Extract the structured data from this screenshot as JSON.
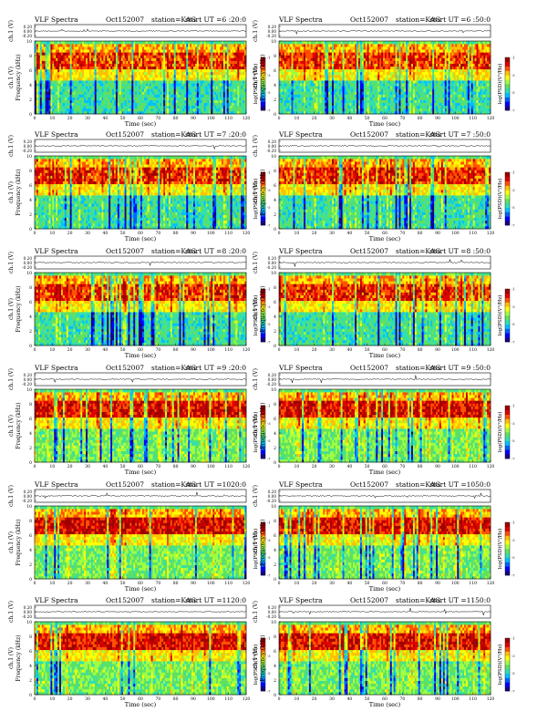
{
  "colors": {
    "scale": [
      "#1a0080",
      "#0000ff",
      "#0060ff",
      "#00c0ff",
      "#30e0b0",
      "#60e060",
      "#a0ff40",
      "#ffff00",
      "#ffc000",
      "#ff5000",
      "#e00000",
      "#a00000"
    ],
    "line": "#000000"
  },
  "panels": [
    {
      "label": "VLF Spectra",
      "date": "Oct152007",
      "station": "station=KAG",
      "start": "start  UT =6 :20:0",
      "y_label": "Frequency (kHz)",
      "cb_label": "log(PSD)(V²/Hz)",
      "x_label": "Time  (sec)",
      "ch_label": "ch.1 (V)"
    },
    {
      "label": "VLF Spectra",
      "date": "Oct152007",
      "station": "station=KAG",
      "start": "start  UT =6 :50:0",
      "y_label": "Frequency (kHz)",
      "cb_label": "log(PSD)(V²/Hz)",
      "x_label": "Time  (sec)",
      "ch_label": "ch.1 (V)"
    },
    {
      "label": "VLF Spectra",
      "date": "Oct152007",
      "station": "station=KAG",
      "start": "start  UT =7 :20:0",
      "y_label": "Frequency (kHz)",
      "cb_label": "log(PSD)(V²/Hz)",
      "x_label": "Time  (sec)",
      "ch_label": "ch.1 (V)"
    },
    {
      "label": "VLF Spectra",
      "date": "Oct152007",
      "station": "station=KAG",
      "start": "start  UT =7 :50:0",
      "y_label": "Frequency (kHz)",
      "cb_label": "log(PSD)(V²/Hz)",
      "x_label": "Time  (sec)",
      "ch_label": "ch.1 (V)"
    },
    {
      "label": "VLF Spectra",
      "date": "Oct152007",
      "station": "station=KAG",
      "start": "start  UT =8 :20:0",
      "y_label": "Frequency (kHz)",
      "cb_label": "log(PSD)(V²/Hz)",
      "x_label": "Time  (sec)",
      "ch_label": "ch.1 (V)"
    },
    {
      "label": "VLF Spectra",
      "date": "Oct152007",
      "station": "station=KAG",
      "start": "start  UT =8 :50:0",
      "y_label": "Frequency (kHz)",
      "cb_label": "log(PSD)(V²/Hz)",
      "x_label": "Time  (sec)",
      "ch_label": "ch.1 (V)"
    },
    {
      "label": "VLF Spectra",
      "date": "Oct152007",
      "station": "station=KAG",
      "start": "start  UT =9 :20:0",
      "y_label": "Frequency (kHz)",
      "cb_label": "log(PSD)(V²/Hz)",
      "x_label": "Time  (sec)",
      "ch_label": "ch.1 (V)"
    },
    {
      "label": "VLF Spectra",
      "date": "Oct152007",
      "station": "station=KAG",
      "start": "start  UT =9 :50:0",
      "y_label": "Frequency (kHz)",
      "cb_label": "log(PSD)(V²/Hz)",
      "x_label": "Time  (sec)",
      "ch_label": "ch.1 (V)"
    },
    {
      "label": "VLF Spectra",
      "date": "Oct152007",
      "station": "station=KAG",
      "start": "start  UT =1020:0",
      "y_label": "Frequency (kHz)",
      "cb_label": "log(PSD)(V²/Hz)",
      "x_label": "Time  (sec)",
      "ch_label": "ch.1 (V)"
    },
    {
      "label": "VLF Spectra",
      "date": "Oct152007",
      "station": "station=KAG",
      "start": "start  UT =1050:0",
      "y_label": "Frequency (kHz)",
      "cb_label": "log(PSD)(V²/Hz)",
      "x_label": "Time  (sec)",
      "ch_label": "ch.1 (V)"
    },
    {
      "label": "VLF Spectra",
      "date": "Oct152007",
      "station": "station=KAG",
      "start": "start  UT =1120:0",
      "y_label": "Frequency (kHz)",
      "cb_label": "log(PSD)(V²/Hz)",
      "x_label": "Time  (sec)",
      "ch_label": "ch.1 (V)"
    },
    {
      "label": "VLF Spectra",
      "date": "Oct152007",
      "station": "station=KAG",
      "start": "start  UT =1150:0",
      "y_label": "Frequency (kHz)",
      "cb_label": "log(PSD)(V²/Hz)",
      "x_label": "Time  (sec)",
      "ch_label": "ch.1 (V)"
    }
  ],
  "chart_data": {
    "type": "heatmap",
    "x_ticks": [
      "0",
      "10",
      "20",
      "30",
      "40",
      "50",
      "60",
      "70",
      "80",
      "90",
      "100",
      "110",
      "120"
    ],
    "xlim": [
      0,
      120
    ],
    "y_ticks": [
      "0",
      "2",
      "4",
      "6",
      "8",
      "10"
    ],
    "ylim": [
      0,
      10
    ],
    "ch_ticks": [
      "0.20",
      "0.00",
      "-0.20"
    ],
    "ch_ylim": [
      -0.2,
      0.2
    ],
    "cb_ticks": [
      "-1",
      "-3",
      "-5",
      "-7"
    ]
  }
}
